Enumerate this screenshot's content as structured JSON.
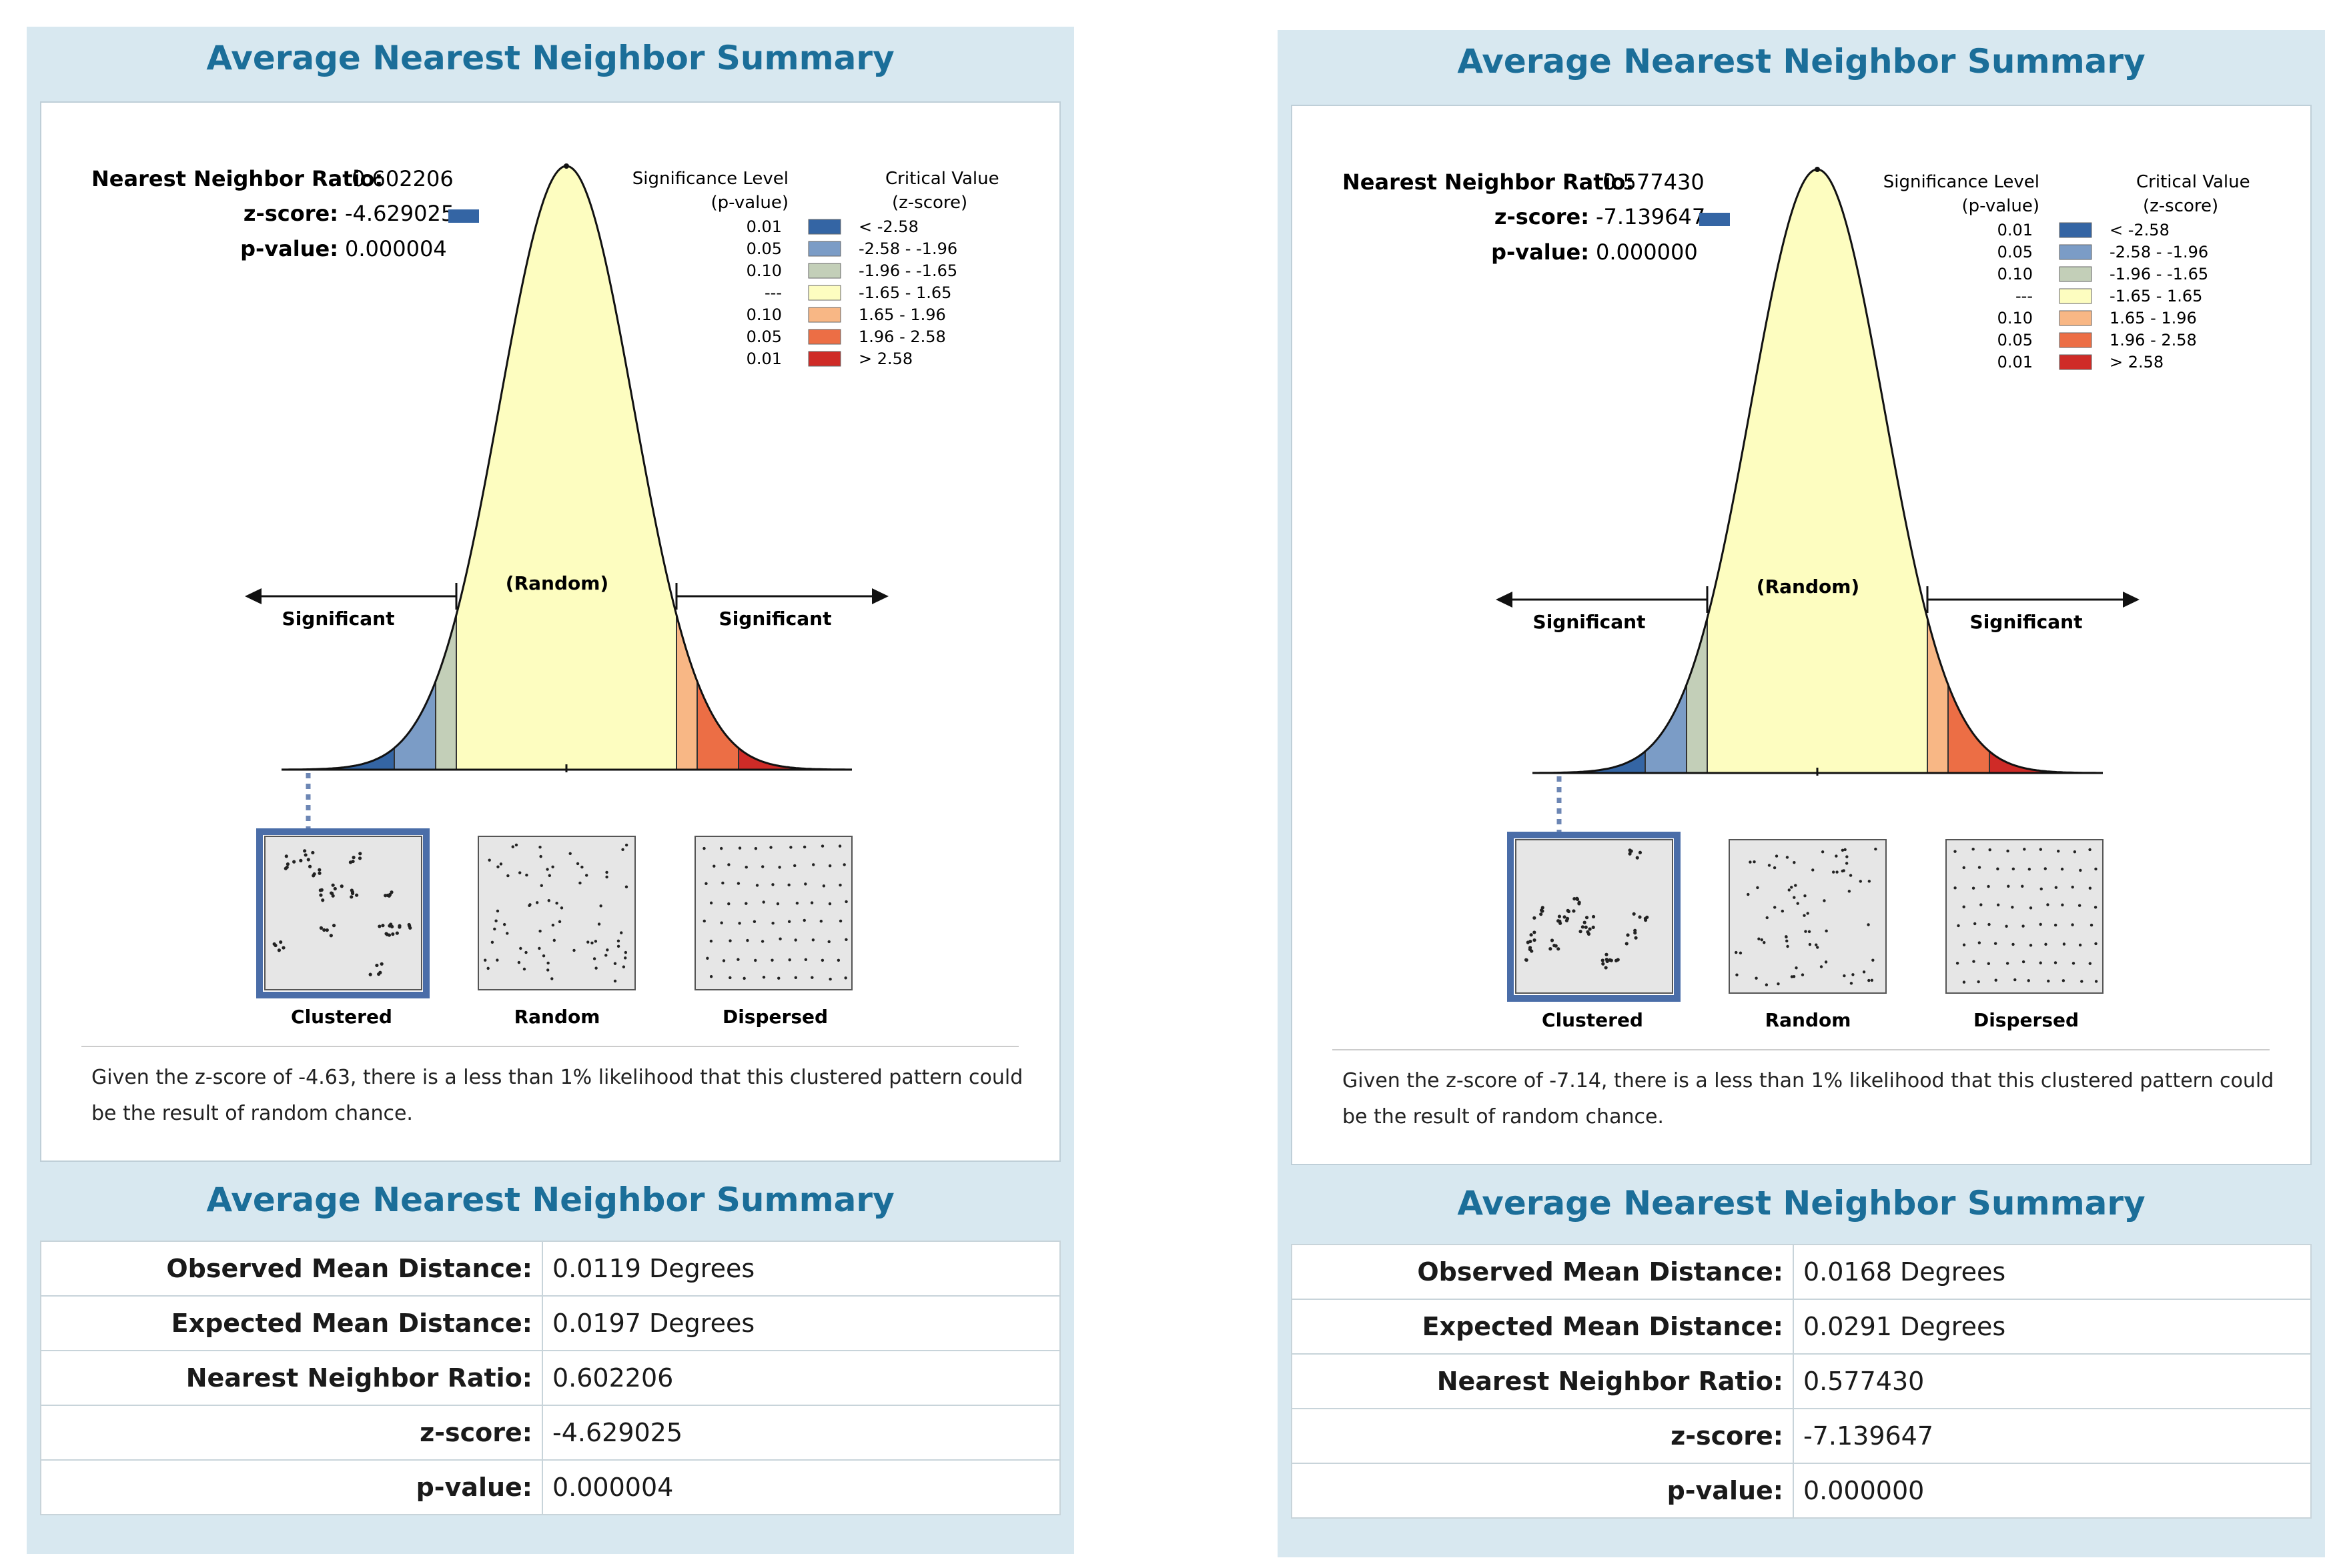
{
  "panels": [
    {
      "title_top": "Average Nearest Neighbor Summary",
      "title_table": "Average Nearest Neighbor Summary",
      "stats": {
        "ratio_label": "Nearest Neighbor Ratio:",
        "ratio_value": "0.602206",
        "z_label": "z-score:",
        "z_value": "-4.629025",
        "p_label": "p-value:",
        "p_value": "0.000004"
      },
      "legend": {
        "sig_header_1": "Significance Level",
        "sig_header_2": "(p-value)",
        "crit_header_1": "Critical Value",
        "crit_header_2": "(z-score)",
        "rows": [
          {
            "p": "0.01",
            "z": "< -2.58",
            "color": "#3465a4"
          },
          {
            "p": "0.05",
            "z": "-2.58 - -1.96",
            "color": "#7b9cc6"
          },
          {
            "p": "0.10",
            "z": "-1.96 - -1.65",
            "color": "#c3cfb8"
          },
          {
            "p": "---",
            "z": "-1.65 - 1.65",
            "color": "#fdfdc0"
          },
          {
            "p": "0.10",
            "z": "1.65 - 1.96",
            "color": "#f8b785"
          },
          {
            "p": "0.05",
            "z": "1.96 - 2.58",
            "color": "#ec6e45"
          },
          {
            "p": "0.01",
            "z": "> 2.58",
            "color": "#cf2b27"
          }
        ]
      },
      "curve_labels": {
        "random": "(Random)",
        "sig_left": "Significant",
        "sig_right": "Significant"
      },
      "patterns": [
        "Clustered",
        "Random",
        "Dispersed"
      ],
      "description_1": "Given the z-score of -4.63, there is a less than 1% likelihood that this clustered pattern could",
      "description_2": "be the result of random chance.",
      "table": [
        {
          "label": "Observed Mean Distance:",
          "value": "0.0119 Degrees"
        },
        {
          "label": "Expected Mean Distance:",
          "value": "0.0197 Degrees"
        },
        {
          "label": "Nearest Neighbor Ratio:",
          "value": "0.602206"
        },
        {
          "label": "z-score:",
          "value": "-4.629025"
        },
        {
          "label": "p-value:",
          "value": "0.000004"
        }
      ]
    },
    {
      "title_top": "Average Nearest Neighbor Summary",
      "title_table": "Average Nearest Neighbor Summary",
      "stats": {
        "ratio_label": "Nearest Neighbor Ratio:",
        "ratio_value": "0.577430",
        "z_label": "z-score:",
        "z_value": "-7.139647",
        "p_label": "p-value:",
        "p_value": "0.000000"
      },
      "legend": {
        "sig_header_1": "Significance Level",
        "sig_header_2": "(p-value)",
        "crit_header_1": "Critical Value",
        "crit_header_2": "(z-score)",
        "rows": [
          {
            "p": "0.01",
            "z": "< -2.58",
            "color": "#3465a4"
          },
          {
            "p": "0.05",
            "z": "-2.58 - -1.96",
            "color": "#7b9cc6"
          },
          {
            "p": "0.10",
            "z": "-1.96 - -1.65",
            "color": "#c3cfb8"
          },
          {
            "p": "---",
            "z": "-1.65 - 1.65",
            "color": "#fdfdc0"
          },
          {
            "p": "0.10",
            "z": "1.65 - 1.96",
            "color": "#f8b785"
          },
          {
            "p": "0.05",
            "z": "1.96 - 2.58",
            "color": "#ec6e45"
          },
          {
            "p": "0.01",
            "z": "> 2.58",
            "color": "#cf2b27"
          }
        ]
      },
      "curve_labels": {
        "random": "(Random)",
        "sig_left": "Significant",
        "sig_right": "Significant"
      },
      "patterns": [
        "Clustered",
        "Random",
        "Dispersed"
      ],
      "description_1": "Given the z-score of -7.14, there is a less than 1% likelihood that this clustered pattern could",
      "description_2": "be the result of random chance.",
      "table": [
        {
          "label": "Observed Mean Distance:",
          "value": "0.0168 Degrees"
        },
        {
          "label": "Expected Mean Distance:",
          "value": "0.0291 Degrees"
        },
        {
          "label": "Nearest Neighbor Ratio:",
          "value": "0.577430"
        },
        {
          "label": "z-score:",
          "value": "-7.139647"
        },
        {
          "label": "p-value:",
          "value": "0.000000"
        }
      ]
    }
  ],
  "chart_data": [
    {
      "type": "area",
      "title": "Average Nearest Neighbor Summary",
      "x": "z-score",
      "breaks": [
        -2.58,
        -1.96,
        -1.65,
        1.65,
        1.96,
        2.58
      ],
      "observed_z": -4.629025,
      "highlighted_pattern": "Clustered"
    },
    {
      "type": "area",
      "title": "Average Nearest Neighbor Summary",
      "x": "z-score",
      "breaks": [
        -2.58,
        -1.96,
        -1.65,
        1.65,
        1.96,
        2.58
      ],
      "observed_z": -7.139647,
      "highlighted_pattern": "Clustered"
    }
  ]
}
